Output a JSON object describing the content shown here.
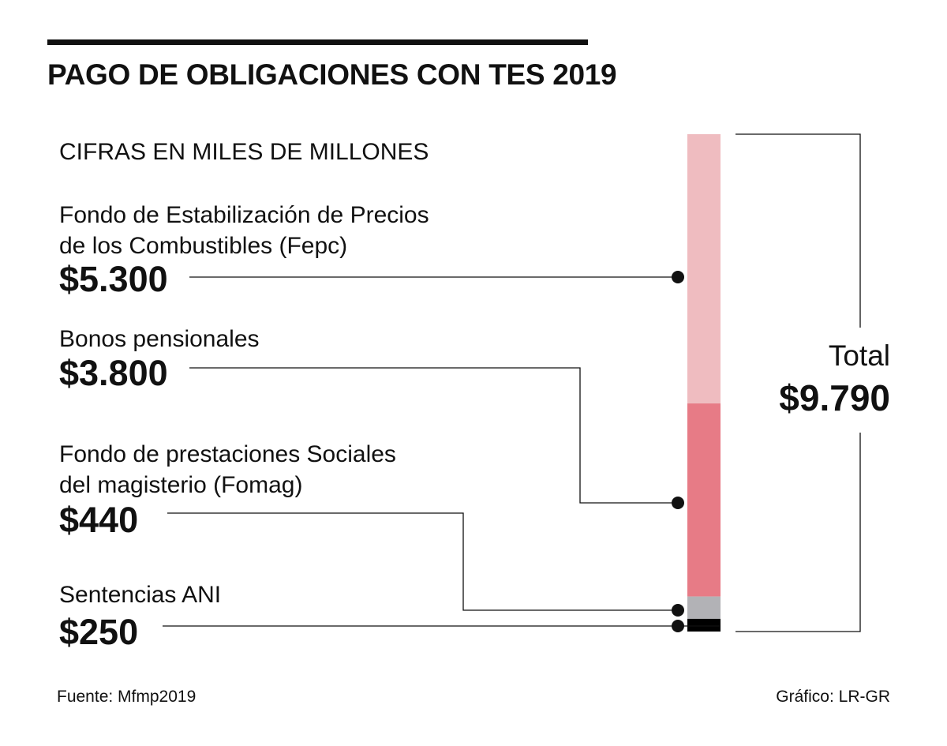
{
  "title": "PAGO DE OBLIGACIONES CON TES 2019",
  "subtitle": "CIFRAS EN MILES DE MILLONES",
  "total": {
    "label": "Total",
    "value": "$9.790"
  },
  "footer": {
    "source": "Fuente: Mfmp2019",
    "credit": "Gráfico: LR-GR"
  },
  "chart_data": {
    "type": "bar",
    "orientation": "stacked-vertical",
    "title": "PAGO DE OBLIGACIONES CON TES 2019",
    "unit": "miles de millones",
    "categories": [
      "Fondo de Estabilización de Precios de los Combustibles (Fepc)",
      "Bonos pensionales",
      "Fondo de prestaciones Sociales del magisterio (Fomag)",
      "Sentencias ANI"
    ],
    "values": [
      5300,
      3800,
      440,
      250
    ],
    "total": 9790,
    "series": [
      {
        "name": "Fepc",
        "label_lines": [
          "Fondo de Estabilización de Precios",
          "de los Combustibles (Fepc)"
        ],
        "value": 5300,
        "display": "$5.300",
        "color": "#efbcc0"
      },
      {
        "name": "Bonos",
        "label_lines": [
          "Bonos pensionales"
        ],
        "value": 3800,
        "display": "$3.800",
        "color": "#e77b86"
      },
      {
        "name": "Fomag",
        "label_lines": [
          "Fondo de prestaciones Sociales",
          "del magisterio (Fomag)"
        ],
        "value": 440,
        "display": "$440",
        "color": "#b2b2b6"
      },
      {
        "name": "ANI",
        "label_lines": [
          "Sentencias ANI"
        ],
        "value": 250,
        "display": "$250",
        "color": "#000000"
      }
    ]
  }
}
